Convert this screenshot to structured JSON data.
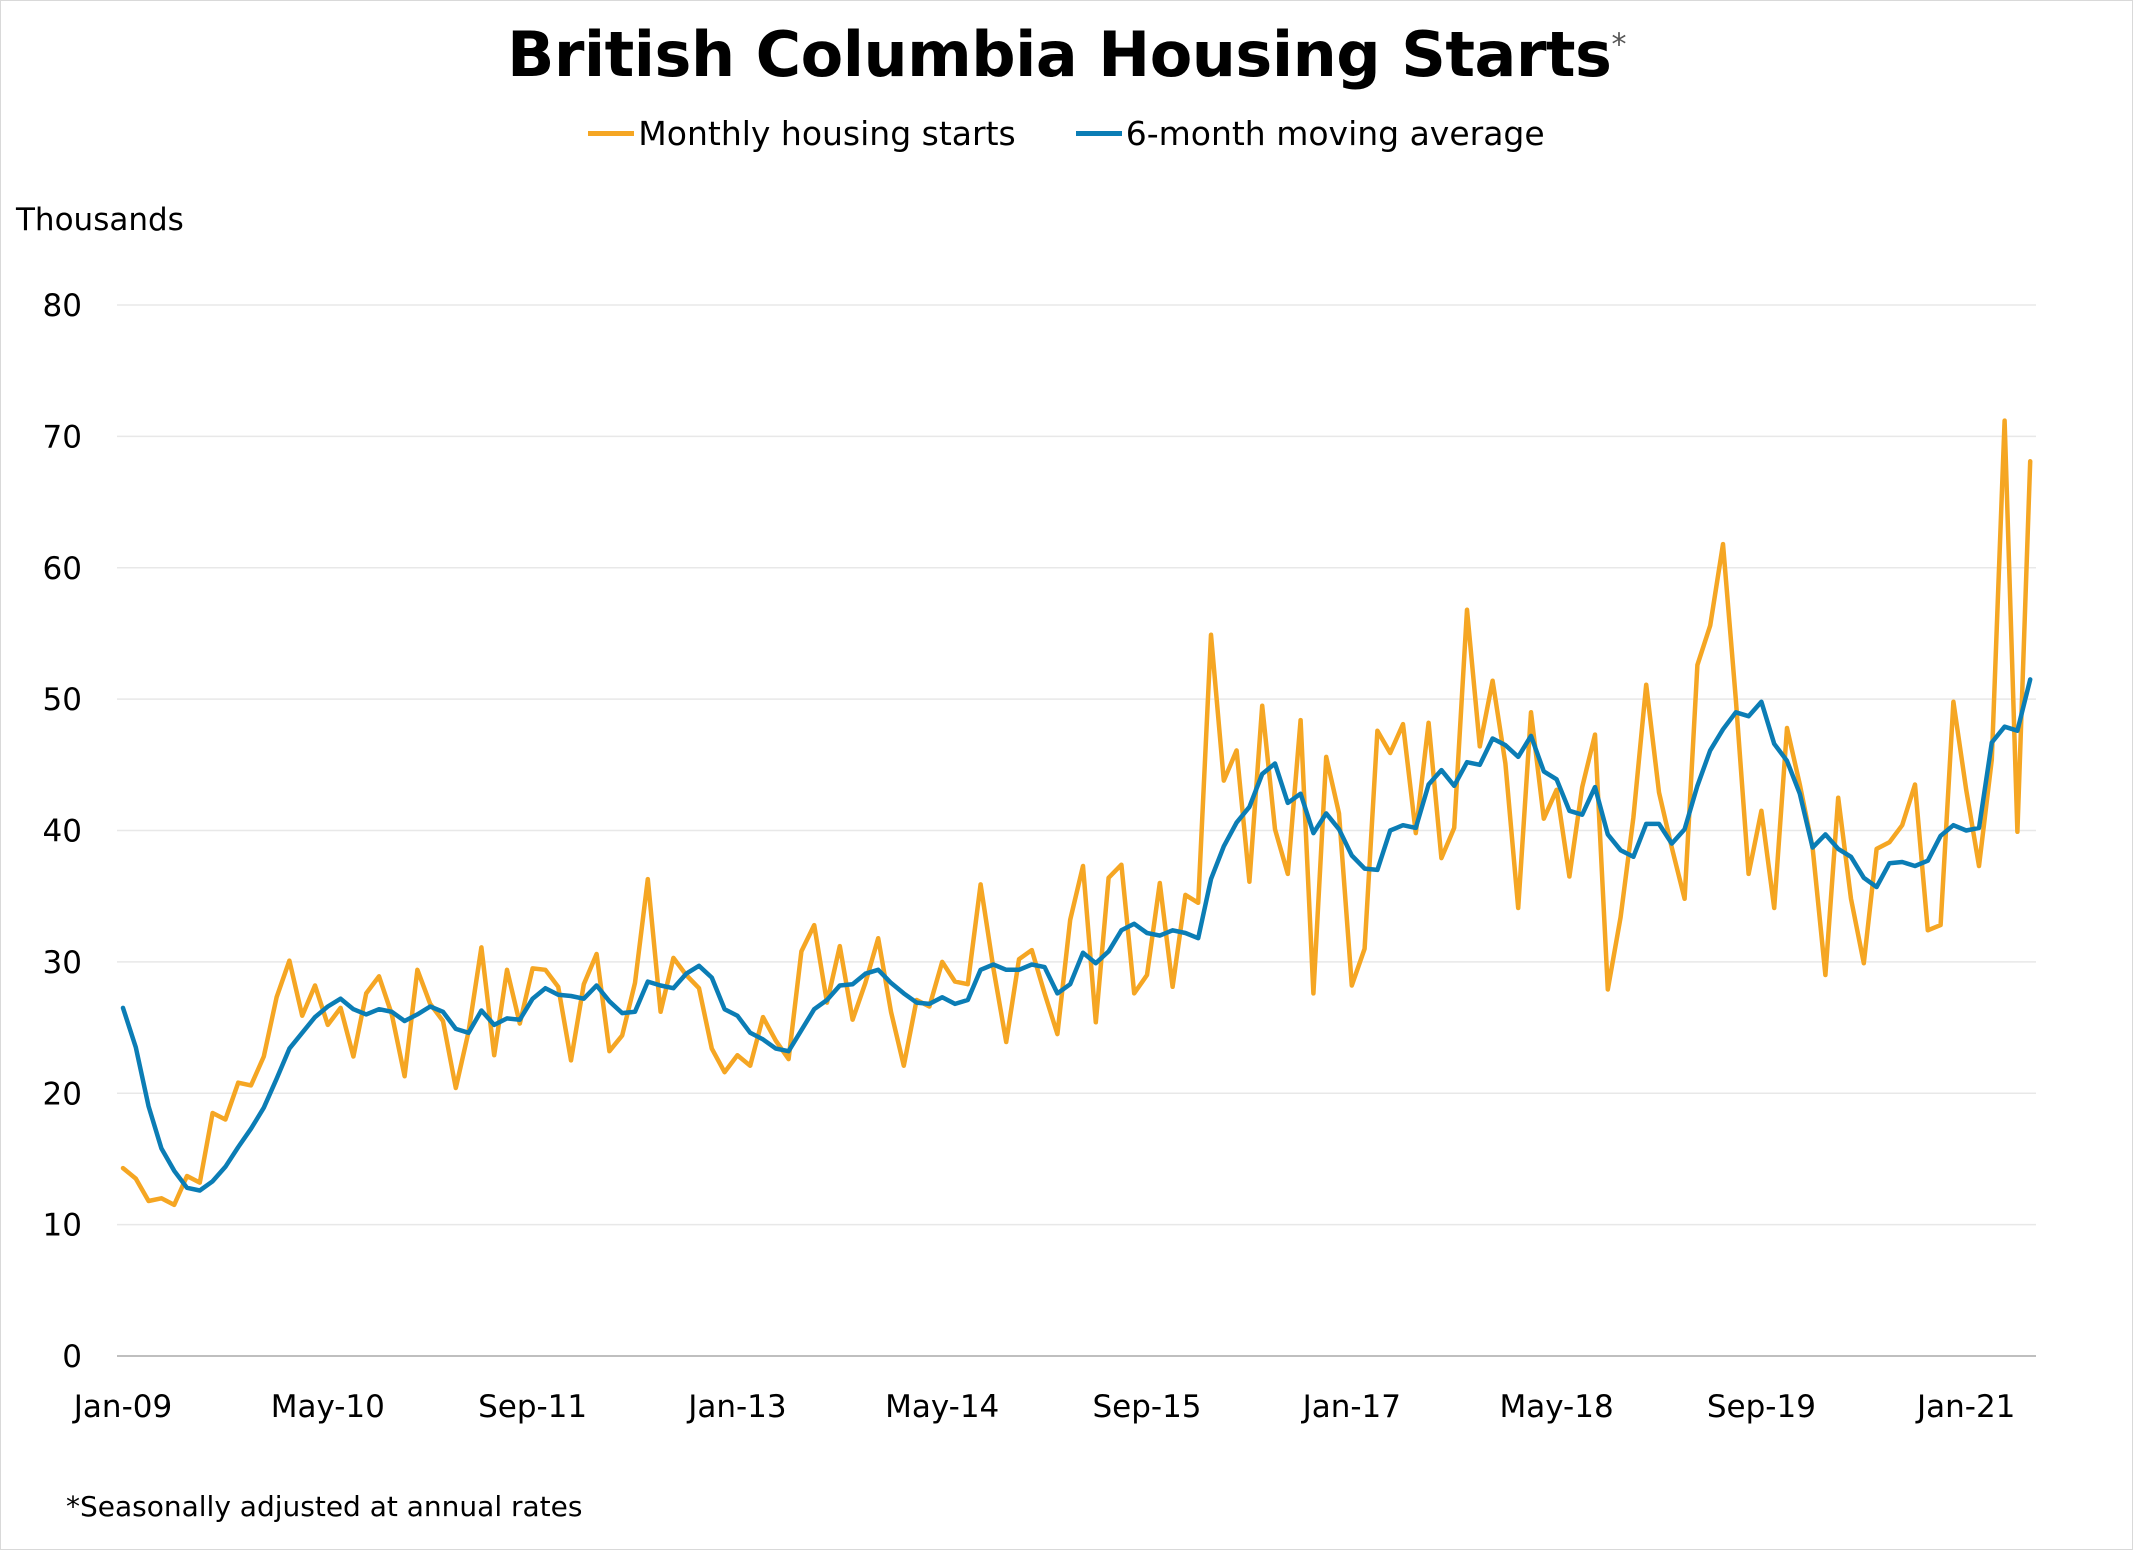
{
  "title": "British Columbia Housing Starts",
  "title_marker": "*",
  "footnote": "*Seasonally adjusted at annual rates",
  "colors": {
    "monthly": "#F5A623",
    "average": "#0B7DB5",
    "grid": "#e8e8e8",
    "axis": "#bfbfbf"
  },
  "chart_data": {
    "type": "line",
    "ylabel": "Thousands",
    "ylim": [
      0,
      80
    ],
    "y_ticks": [
      0,
      10,
      20,
      30,
      40,
      50,
      60,
      70,
      80
    ],
    "x_tick_labels": [
      "Jan-09",
      "May-10",
      "Sep-11",
      "Jan-13",
      "May-14",
      "Sep-15",
      "Jan-17",
      "May-18",
      "Sep-19",
      "Jan-21"
    ],
    "x_start": "Jan-09",
    "x_end": "Jun-21",
    "grid": true,
    "legend_position": "top-center",
    "series": [
      {
        "name": "Monthly housing starts",
        "values": [
          14.3,
          13.5,
          11.8,
          12.0,
          11.5,
          13.7,
          13.2,
          18.5,
          18.0,
          20.8,
          20.6,
          22.8,
          27.3,
          30.1,
          25.9,
          28.2,
          25.2,
          26.5,
          22.8,
          27.6,
          28.9,
          26.0,
          21.3,
          29.4,
          26.8,
          25.5,
          20.4,
          24.7,
          31.1,
          22.9,
          29.4,
          25.3,
          29.5,
          29.4,
          28.1,
          22.5,
          28.3,
          30.6,
          23.2,
          24.4,
          28.4,
          36.3,
          26.2,
          30.3,
          29.0,
          28.0,
          23.4,
          21.6,
          22.9,
          22.1,
          25.8,
          24.0,
          22.6,
          30.8,
          32.8,
          26.9,
          31.2,
          25.6,
          28.4,
          31.8,
          26.2,
          22.1,
          27.1,
          26.6,
          30.0,
          28.5,
          28.3,
          35.9,
          29.5,
          23.9,
          30.2,
          30.9,
          27.6,
          24.5,
          33.2,
          37.3,
          25.4,
          36.4,
          37.4,
          27.6,
          29.0,
          36.0,
          28.1,
          35.1,
          34.5,
          54.9,
          43.8,
          46.1,
          36.1,
          49.5,
          40.1,
          36.7,
          48.4,
          27.6,
          45.6,
          41.3,
          28.2,
          31.0,
          47.6,
          45.9,
          48.1,
          39.8,
          48.2,
          37.9,
          40.2,
          56.8,
          46.4,
          51.4,
          45.1,
          34.1,
          49.0,
          40.9,
          43.1,
          36.5,
          43.3,
          47.3,
          27.9,
          33.4,
          41.0,
          51.1,
          42.9,
          38.7,
          34.8,
          52.6,
          55.6,
          61.8,
          50.0,
          36.7,
          41.5,
          34.1,
          47.8,
          43.5,
          38.7,
          29.0,
          42.5,
          34.8,
          29.9,
          38.6,
          39.1,
          40.4,
          43.5,
          32.4,
          32.8,
          49.8,
          43.1,
          37.3,
          45.4,
          71.2,
          39.9,
          68.1
        ]
      },
      {
        "name": "6-month moving average",
        "values": [
          26.5,
          23.5,
          19.0,
          15.8,
          14.1,
          12.8,
          12.6,
          13.3,
          14.4,
          15.9,
          17.3,
          18.9,
          21.1,
          23.4,
          24.6,
          25.8,
          26.6,
          27.2,
          26.4,
          26.0,
          26.4,
          26.2,
          25.5,
          26.0,
          26.6,
          26.2,
          24.9,
          24.6,
          26.3,
          25.2,
          25.7,
          25.6,
          27.2,
          28.0,
          27.5,
          27.4,
          27.2,
          28.2,
          27.0,
          26.1,
          26.2,
          28.5,
          28.2,
          28.0,
          29.1,
          29.7,
          28.8,
          26.4,
          25.9,
          24.6,
          24.1,
          23.4,
          23.2,
          24.8,
          26.4,
          27.1,
          28.2,
          28.3,
          29.1,
          29.4,
          28.4,
          27.6,
          26.9,
          26.8,
          27.3,
          26.8,
          27.1,
          29.4,
          29.8,
          29.4,
          29.4,
          29.8,
          29.6,
          27.6,
          28.3,
          30.7,
          29.9,
          30.8,
          32.4,
          32.9,
          32.2,
          32.0,
          32.4,
          32.2,
          31.8,
          36.3,
          38.8,
          40.6,
          41.8,
          44.3,
          45.1,
          42.1,
          42.8,
          39.8,
          41.3,
          40.1,
          38.1,
          37.1,
          37.0,
          40.0,
          40.4,
          40.2,
          43.5,
          44.6,
          43.4,
          45.2,
          45.0,
          47.0,
          46.5,
          45.6,
          47.2,
          44.5,
          43.9,
          41.5,
          41.2,
          43.3,
          39.7,
          38.5,
          38.0,
          40.5,
          40.5,
          39.0,
          40.1,
          43.4,
          46.1,
          47.7,
          49.0,
          48.7,
          49.8,
          46.6,
          45.3,
          42.8,
          38.7,
          39.7,
          38.6,
          38.0,
          36.4,
          35.7,
          37.5,
          37.6,
          37.3,
          37.7,
          39.6,
          40.4,
          40.0,
          40.2,
          46.7,
          47.9,
          47.6,
          51.5
        ]
      }
    ]
  }
}
